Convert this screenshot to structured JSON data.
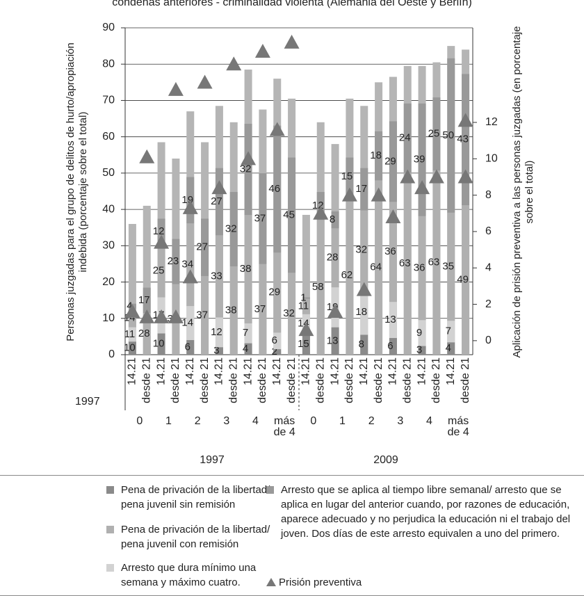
{
  "chart_data": {
    "type": "bar",
    "title": "condenas anteriores - criminalidad violenta (Alemania del Oeste y Berlín)",
    "ylabel": "Personas juzgadas para el grupo de delitos de hurto/apropiación indebida (porcentaje sobre el total)",
    "y2label": "Aplicación de prisión preventiva a las personas juzgadas (en porcentaje sobre el total)",
    "ylim": [
      0,
      90
    ],
    "yticks": [
      0,
      10,
      20,
      30,
      40,
      50,
      60,
      70,
      80,
      90
    ],
    "y2lim": [
      -0.77,
      17.2
    ],
    "y2ticks": [
      0,
      2,
      4,
      6,
      8,
      10,
      12
    ],
    "grid": true,
    "side_label": "1997",
    "categories": [
      "14.21",
      "desde 21",
      "14.21",
      "desde 21",
      "14.21",
      "desde 21",
      "14.21",
      "desde 21",
      "14.21",
      "desde 21",
      "14.21",
      "desde 21",
      "14.21",
      "desde 21",
      "14.21",
      "desde 21",
      "14.21",
      "desde 21",
      "14.21",
      "desde 21",
      "14.21",
      "desde 21",
      "14.21",
      "desde 21"
    ],
    "groups": [
      "0",
      "1",
      "2",
      "3",
      "4",
      "más de 4",
      "0",
      "1",
      "2",
      "3",
      "4",
      "más de 4"
    ],
    "years": [
      "1997",
      "2009"
    ],
    "totals": {
      "color": "#b5b5b5",
      "values": [
        36,
        41,
        58.5,
        54,
        67,
        58.5,
        68.5,
        64,
        78.5,
        67.5,
        76,
        70.5,
        38.5,
        64,
        58,
        70.5,
        68.5,
        75,
        76.5,
        79.5,
        79.5,
        80.5,
        85,
        84
      ]
    },
    "series": [
      {
        "name": "Pena de privación de la libertad/ pena juvenil sin remisión",
        "color": "#8a8a8a",
        "values": [
          10,
          null,
          10,
          null,
          6,
          null,
          3,
          null,
          4,
          null,
          2,
          null,
          15,
          null,
          13,
          null,
          8,
          null,
          6,
          null,
          3,
          null,
          4,
          null
        ]
      },
      {
        "name": "Arresto que dura mínimo una semana y máximo cuatro.",
        "color": "#d2d2d2",
        "values": [
          11,
          null,
          17,
          null,
          14,
          null,
          12,
          null,
          7,
          null,
          6,
          null,
          14,
          null,
          19,
          null,
          18,
          null,
          13,
          null,
          9,
          null,
          7,
          null
        ]
      },
      {
        "name": "Pena de privación de la libertad/ pena juvenil con remisión",
        "color": "#b0b0b0",
        "values": [
          14,
          28,
          25,
          36,
          34,
          37,
          33,
          38,
          38,
          37,
          29,
          32,
          11,
          58,
          28,
          62,
          32,
          64,
          36,
          63,
          36,
          63,
          35,
          49
        ]
      },
      {
        "name": "Arresto que se aplica al tiempo libre semanal/ arresto que se aplica en lugar del anterior cuando, por razones de educación, aparece adecuado y no perjudica la educación ni el trabajo del joven. Dos días de este arresto equivalen a uno del primero.",
        "color": "#999999",
        "values": [
          4,
          17,
          12,
          23,
          19,
          27,
          27,
          32,
          32,
          37,
          46,
          45,
          1,
          12,
          8,
          15,
          17,
          18,
          29,
          24,
          39,
          25,
          50,
          43
        ]
      }
    ],
    "markers": {
      "name": "Prisión preventiva",
      "color": "#777777",
      "axis": "y2",
      "x": [
        0,
        1,
        1,
        2,
        2,
        3,
        3,
        4,
        4,
        5,
        6,
        7,
        8,
        9,
        10,
        11,
        12,
        13,
        14,
        15,
        16,
        17,
        18,
        19,
        20,
        21,
        23,
        23
      ],
      "values": [
        1.6,
        10.1,
        1.3,
        1.3,
        5.4,
        13.8,
        1.3,
        3.5,
        7.3,
        14.2,
        8.4,
        15.2,
        10.0,
        15.9,
        11.6,
        16.4,
        0.6,
        7.0,
        1.6,
        8.0,
        2.8,
        8.0,
        6.8,
        9.0,
        8.4,
        9.0,
        9.0,
        12.1
      ]
    }
  }
}
